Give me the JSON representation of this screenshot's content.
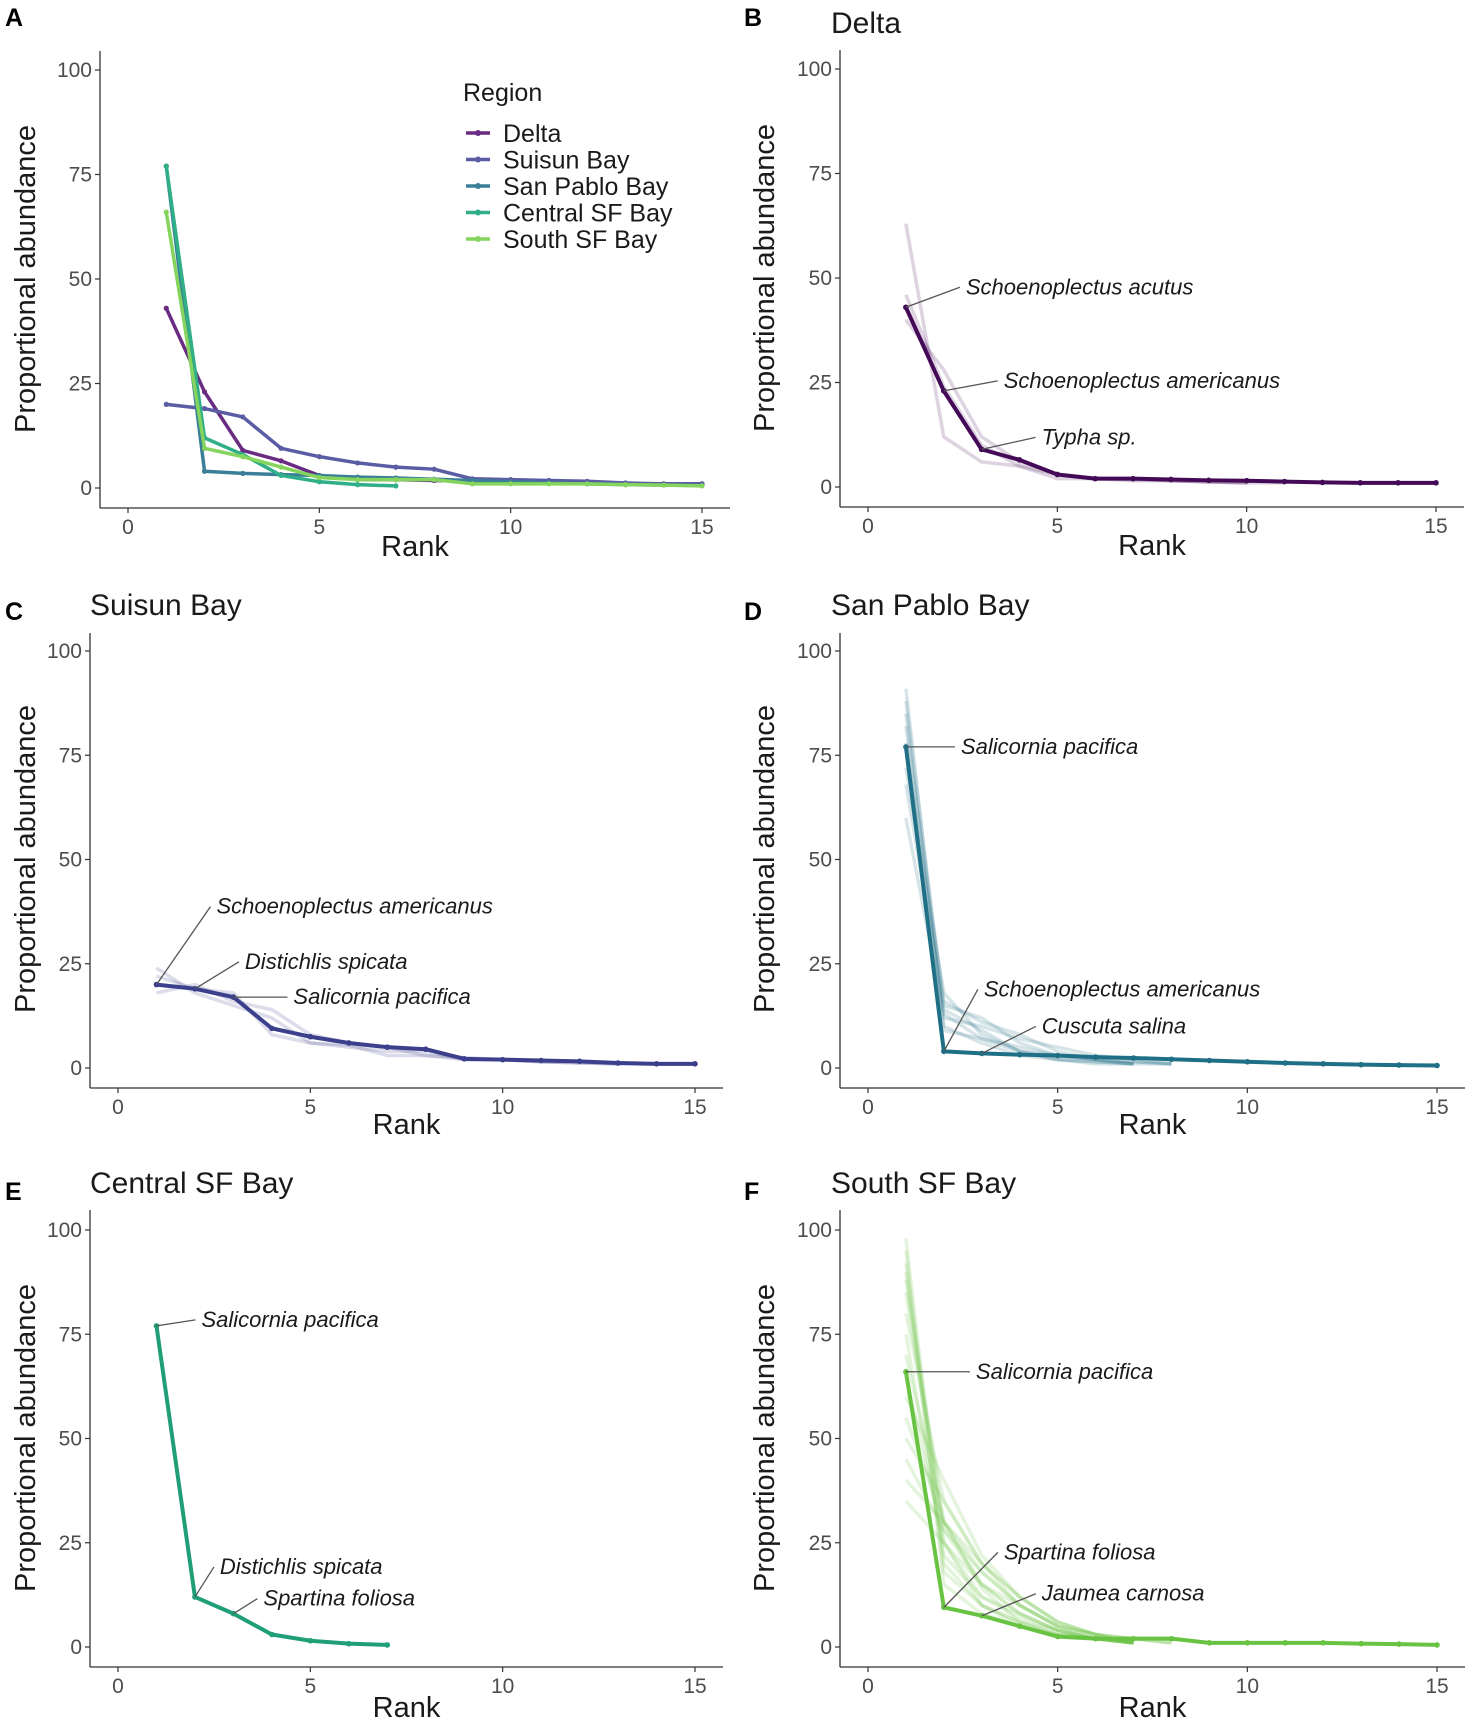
{
  "chart_data": [
    {
      "panel": "A",
      "type": "line",
      "title": "",
      "xlabel": "Rank",
      "ylabel": "Proportional abundance",
      "xlim": [
        0,
        15
      ],
      "ylim": [
        0,
        100
      ],
      "xticks": [
        "0",
        "5",
        "10",
        "15"
      ],
      "yticks": [
        "0",
        "25",
        "50",
        "75",
        "100"
      ],
      "legend": {
        "title": "Region",
        "position": "top-right",
        "entries": [
          "Delta",
          "Suisun Bay",
          "San Pablo Bay",
          "Central SF Bay",
          "South SF Bay"
        ]
      },
      "series": [
        {
          "name": "Delta",
          "color": "#6a2c82",
          "x": [
            1,
            2,
            3,
            4,
            5,
            6,
            7,
            8,
            9,
            10,
            11,
            12,
            13,
            14,
            15
          ],
          "values": [
            43,
            23,
            9,
            6.5,
            3,
            2,
            2,
            1.8,
            1.6,
            1.5,
            1.3,
            1.1,
            1,
            1,
            1
          ]
        },
        {
          "name": "Suisun Bay",
          "color": "#5a5da3",
          "x": [
            1,
            2,
            3,
            4,
            5,
            6,
            7,
            8,
            9,
            10,
            11,
            12,
            13,
            14,
            15
          ],
          "values": [
            20,
            19,
            17,
            9.5,
            7.5,
            6,
            5,
            4.5,
            2.2,
            2,
            1.8,
            1.6,
            1.2,
            1,
            1
          ]
        },
        {
          "name": "San Pablo Bay",
          "color": "#3a7f97",
          "x": [
            1,
            2,
            3,
            4,
            5,
            6,
            7,
            8,
            9,
            10,
            11,
            12,
            13,
            14,
            15
          ],
          "values": [
            77,
            4,
            3.5,
            3.2,
            3,
            2.6,
            2.4,
            2.1,
            1.8,
            1.5,
            1.2,
            1,
            0.8,
            0.7,
            0.6
          ]
        },
        {
          "name": "Central SF Bay",
          "color": "#2fae88",
          "x": [
            1,
            2,
            3,
            4,
            5,
            6,
            7
          ],
          "values": [
            77,
            12,
            8,
            3,
            1.5,
            0.8,
            0.5
          ]
        },
        {
          "name": "South SF Bay",
          "color": "#84d45d",
          "x": [
            1,
            2,
            3,
            4,
            5,
            6,
            7,
            8,
            9,
            10,
            11,
            12,
            13,
            14,
            15
          ],
          "values": [
            66,
            9.5,
            7.5,
            5,
            2.5,
            2,
            2,
            2,
            1,
            1,
            1,
            1,
            0.8,
            0.7,
            0.5
          ]
        }
      ]
    },
    {
      "panel": "B",
      "type": "line",
      "title": "Delta",
      "xlabel": "Rank",
      "ylabel": "Proportional abundance",
      "xlim": [
        0,
        15
      ],
      "ylim": [
        0,
        100
      ],
      "xticks": [
        "0",
        "5",
        "10",
        "15"
      ],
      "yticks": [
        "0",
        "25",
        "50",
        "75",
        "100"
      ],
      "color": "#440a57",
      "mean": {
        "x": [
          1,
          2,
          3,
          4,
          5,
          6,
          7,
          8,
          9,
          10,
          11,
          12,
          13,
          14,
          15
        ],
        "values": [
          43,
          23,
          9,
          6.5,
          3,
          2,
          2,
          1.8,
          1.6,
          1.5,
          1.3,
          1.1,
          1,
          1,
          1
        ]
      },
      "sites": [
        [
          63,
          12,
          6,
          5,
          2,
          2,
          1.5,
          1.5,
          1.2,
          1
        ],
        [
          46,
          24,
          10,
          5,
          3,
          2,
          1.8,
          1.5,
          1.3,
          1,
          1
        ],
        [
          40,
          28,
          12,
          6,
          3,
          2,
          2,
          1.5,
          1.2,
          1
        ]
      ],
      "annotations": [
        {
          "text": "Schoenoplectus acutus",
          "x": 1,
          "y": 43
        },
        {
          "text": "Schoenoplectus americanus",
          "x": 2,
          "y": 23
        },
        {
          "text": "Typha sp.",
          "x": 3,
          "y": 9
        }
      ]
    },
    {
      "panel": "C",
      "type": "line",
      "title": "Suisun Bay",
      "xlabel": "Rank",
      "ylabel": "Proportional abundance",
      "xlim": [
        0,
        15
      ],
      "ylim": [
        0,
        100
      ],
      "xticks": [
        "0",
        "5",
        "10",
        "15"
      ],
      "yticks": [
        "0",
        "25",
        "50",
        "75",
        "100"
      ],
      "color": "#3b3f8c",
      "mean": {
        "x": [
          1,
          2,
          3,
          4,
          5,
          6,
          7,
          8,
          9,
          10,
          11,
          12,
          13,
          14,
          15
        ],
        "values": [
          20,
          19,
          17,
          9.5,
          7.5,
          6,
          5,
          4.5,
          2.2,
          2,
          1.8,
          1.6,
          1.2,
          1,
          1
        ]
      },
      "sites": [
        [
          24,
          18,
          15,
          12,
          6,
          5,
          4,
          4,
          2,
          2,
          1.5,
          1.5,
          1,
          1
        ],
        [
          22,
          19,
          18,
          8,
          6,
          5.5,
          3,
          3,
          2,
          2,
          1.5,
          1.2,
          1
        ],
        [
          18,
          20,
          16,
          14,
          8,
          6,
          5,
          3,
          2.5,
          2,
          1.5,
          1.2,
          1
        ]
      ],
      "annotations": [
        {
          "text": "Schoenoplectus americanus",
          "x": 1,
          "y": 20
        },
        {
          "text": "Distichlis spicata",
          "x": 2,
          "y": 19
        },
        {
          "text": "Salicornia pacifica",
          "x": 3,
          "y": 17
        }
      ]
    },
    {
      "panel": "D",
      "type": "line",
      "title": "San Pablo Bay",
      "xlabel": "Rank",
      "ylabel": "Proportional abundance",
      "xlim": [
        0,
        15
      ],
      "ylim": [
        0,
        100
      ],
      "xticks": [
        "0",
        "5",
        "10",
        "15"
      ],
      "yticks": [
        "0",
        "25",
        "50",
        "75",
        "100"
      ],
      "color": "#1f6f86",
      "mean": {
        "x": [
          1,
          2,
          3,
          4,
          5,
          6,
          7,
          8,
          9,
          10,
          11,
          12,
          13,
          14,
          15
        ],
        "values": [
          77,
          4,
          3.5,
          3.2,
          3,
          2.6,
          2.4,
          2.1,
          1.8,
          1.5,
          1.2,
          1,
          0.8,
          0.7,
          0.6
        ]
      },
      "sites": [
        [
          91,
          10,
          6,
          3,
          2,
          1.5,
          1,
          1
        ],
        [
          88,
          14,
          9,
          4,
          3,
          2,
          1.5,
          1
        ],
        [
          82,
          16,
          11,
          8,
          4,
          2,
          1.5,
          1
        ],
        [
          78,
          12,
          10,
          7,
          5,
          3,
          2,
          1
        ],
        [
          72,
          18,
          8,
          4,
          2,
          1.5,
          1
        ],
        [
          68,
          15,
          12,
          6,
          3,
          2,
          1
        ],
        [
          60,
          13,
          7,
          4,
          2,
          1,
          1
        ],
        [
          85,
          9,
          7,
          5,
          3,
          2,
          1
        ]
      ],
      "annotations": [
        {
          "text": "Salicornia pacifica",
          "x": 1,
          "y": 77
        },
        {
          "text": "Schoenoplectus americanus",
          "x": 2,
          "y": 4
        },
        {
          "text": "Cuscuta salina",
          "x": 3,
          "y": 3.5
        }
      ]
    },
    {
      "panel": "E",
      "type": "line",
      "title": "Central SF Bay",
      "xlabel": "Rank",
      "ylabel": "Proportional abundance",
      "xlim": [
        0,
        15
      ],
      "ylim": [
        0,
        100
      ],
      "xticks": [
        "0",
        "5",
        "10",
        "15"
      ],
      "yticks": [
        "0",
        "25",
        "50",
        "75",
        "100"
      ],
      "color": "#1f9e78",
      "mean": {
        "x": [
          1,
          2,
          3,
          4,
          5,
          6,
          7
        ],
        "values": [
          77,
          12,
          8,
          3,
          1.5,
          0.8,
          0.5
        ]
      },
      "sites": [],
      "annotations": [
        {
          "text": "Salicornia pacifica",
          "x": 1,
          "y": 77
        },
        {
          "text": "Distichlis spicata",
          "x": 2,
          "y": 12
        },
        {
          "text": "Spartina foliosa",
          "x": 3,
          "y": 8
        }
      ]
    },
    {
      "panel": "F",
      "type": "line",
      "title": "South SF Bay",
      "xlabel": "Rank",
      "ylabel": "Proportional abundance",
      "xlim": [
        0,
        15
      ],
      "ylim": [
        0,
        100
      ],
      "xticks": [
        "0",
        "5",
        "10",
        "15"
      ],
      "yticks": [
        "0",
        "25",
        "50",
        "75",
        "100"
      ],
      "color": "#69c342",
      "mean": {
        "x": [
          1,
          2,
          3,
          4,
          5,
          6,
          7,
          8,
          9,
          10,
          11,
          12,
          13,
          14,
          15
        ],
        "values": [
          66,
          9.5,
          7.5,
          5,
          2.5,
          2,
          2,
          2,
          1,
          1,
          1,
          1,
          0.8,
          0.7,
          0.5
        ]
      },
      "sites": [
        [
          98,
          20,
          10,
          5,
          3,
          2,
          1
        ],
        [
          95,
          15,
          8,
          5,
          3,
          2,
          1
        ],
        [
          92,
          25,
          12,
          8,
          4,
          2,
          1
        ],
        [
          88,
          30,
          14,
          6,
          3,
          2,
          1
        ],
        [
          85,
          28,
          18,
          10,
          5,
          3,
          2,
          1
        ],
        [
          80,
          35,
          20,
          12,
          6,
          3,
          2,
          1
        ],
        [
          75,
          22,
          12,
          7,
          4,
          2,
          1
        ],
        [
          70,
          30,
          15,
          8,
          4,
          2,
          1
        ],
        [
          65,
          25,
          10,
          6,
          3,
          2,
          1
        ],
        [
          60,
          40,
          22,
          12,
          6,
          3,
          1
        ],
        [
          55,
          30,
          18,
          10,
          5,
          3,
          1
        ],
        [
          50,
          35,
          20,
          12,
          6,
          3,
          2,
          1
        ],
        [
          45,
          28,
          15,
          8,
          4,
          2,
          1
        ],
        [
          40,
          30,
          20,
          10,
          5,
          2,
          1
        ],
        [
          35,
          25,
          15,
          10,
          5,
          3,
          1
        ],
        [
          90,
          18,
          10,
          6,
          4,
          2,
          1
        ]
      ],
      "annotations": [
        {
          "text": "Salicornia pacifica",
          "x": 1,
          "y": 66
        },
        {
          "text": "Spartina foliosa",
          "x": 2,
          "y": 9.5
        },
        {
          "text": "Jaumea carnosa",
          "x": 3,
          "y": 7.5
        }
      ]
    }
  ]
}
